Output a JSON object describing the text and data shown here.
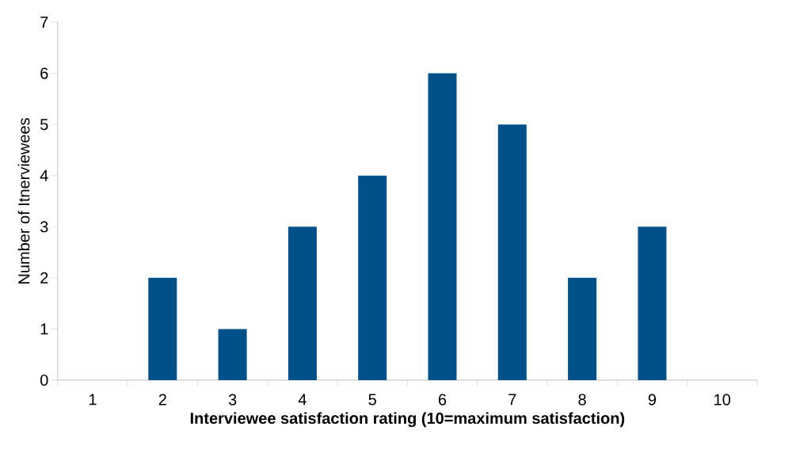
{
  "chart_data": {
    "type": "bar",
    "xlabel": "Interviewee satisfaction rating (10=maximum satisfaction)",
    "ylabel": "Number of Itnerviewees",
    "categories": [
      "1",
      "2",
      "3",
      "4",
      "5",
      "6",
      "7",
      "8",
      "9",
      "10"
    ],
    "values": [
      0,
      2,
      1,
      3,
      4,
      6,
      5,
      2,
      3,
      0
    ],
    "color": "#00508a",
    "ylim": [
      0,
      7
    ],
    "yticks": [
      0,
      1,
      2,
      3,
      4,
      5,
      6,
      7
    ],
    "grid": false
  }
}
